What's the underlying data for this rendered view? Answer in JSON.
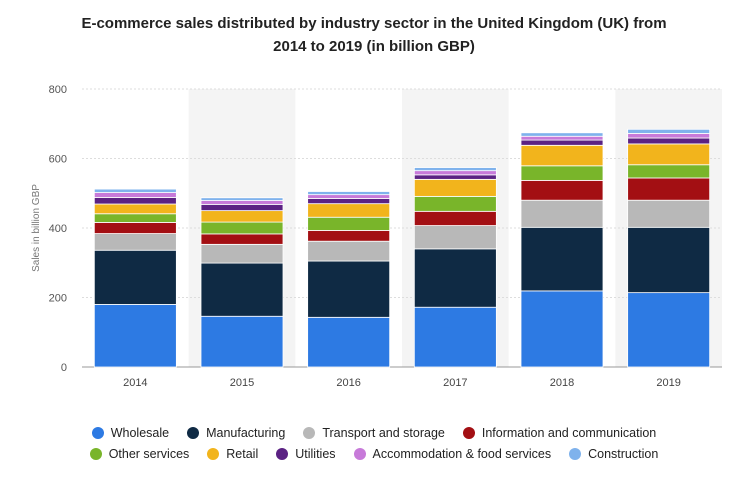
{
  "title_line1": "E-commerce sales distributed by industry sector in the United Kingdom (UK) from",
  "title_line2": "2014 to 2019 (in billion GBP)",
  "chart_data": {
    "type": "bar",
    "stacked": true,
    "title": "E-commerce sales distributed by industry sector in the United Kingdom (UK) from 2014 to 2019 (in billion GBP)",
    "xlabel": "",
    "ylabel": "Sales in billion GBP",
    "ylim": [
      0,
      800
    ],
    "yticks": [
      0,
      200,
      400,
      600,
      800
    ],
    "categories": [
      "2014",
      "2015",
      "2016",
      "2017",
      "2018",
      "2019"
    ],
    "series": [
      {
        "name": "Wholesale",
        "color": "#2d7ae3",
        "values": [
          180,
          146,
          143,
          172,
          219,
          214
        ]
      },
      {
        "name": "Manufacturing",
        "color": "#0f2a44",
        "values": [
          156,
          153,
          162,
          168,
          183,
          188
        ]
      },
      {
        "name": "Transport and storage",
        "color": "#b8b8b8",
        "values": [
          48,
          54,
          57,
          67,
          78,
          78
        ]
      },
      {
        "name": "Information and communication",
        "color": "#a30f13",
        "values": [
          32,
          30,
          31,
          41,
          57,
          64
        ]
      },
      {
        "name": "Other services",
        "color": "#79b52a",
        "values": [
          25,
          34,
          38,
          43,
          42,
          38
        ]
      },
      {
        "name": "Retail",
        "color": "#f2b41c",
        "values": [
          28,
          33,
          39,
          49,
          59,
          60
        ]
      },
      {
        "name": "Utilities",
        "color": "#5b2283",
        "values": [
          19,
          18,
          15,
          13,
          15,
          17
        ]
      },
      {
        "name": "Accommodation & food services",
        "color": "#c77ad9",
        "values": [
          14,
          11,
          11,
          12,
          11,
          13
        ]
      },
      {
        "name": "Construction",
        "color": "#7fb2ec",
        "values": [
          10,
          8,
          9,
          9,
          10,
          12
        ]
      }
    ]
  }
}
